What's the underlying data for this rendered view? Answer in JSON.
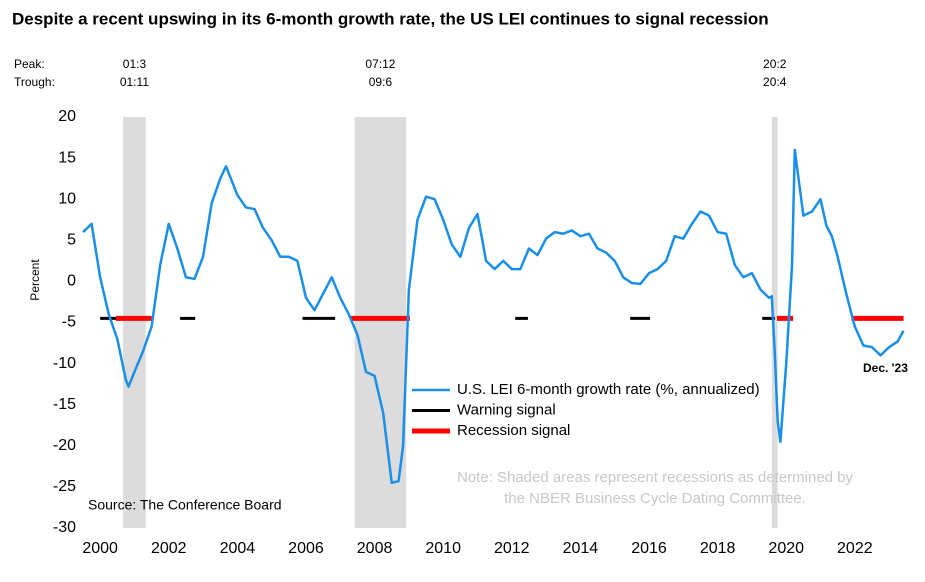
{
  "chart_data": {
    "type": "line",
    "title": "Despite a recent upswing in its 6-month growth rate, the US LEI continues to signal recession",
    "y_label": "Percent",
    "source": "Source: The Conference Board",
    "note": [
      "Note: Shaded areas represent recessions as determined by",
      "the NBER Business Cycle Dating Committee."
    ],
    "peak_label": "Peak:",
    "trough_label": "Trough:",
    "end_annotation": "Dec. '23",
    "xlim": [
      2000,
      2024.05
    ],
    "xticks": [
      {
        "value": 2000.5,
        "label": "2000"
      },
      {
        "value": 2002.5,
        "label": "2002"
      },
      {
        "value": 2004.5,
        "label": "2004"
      },
      {
        "value": 2006.5,
        "label": "2006"
      },
      {
        "value": 2008.5,
        "label": "2008"
      },
      {
        "value": 2010.5,
        "label": "2010"
      },
      {
        "value": 2012.5,
        "label": "2012"
      },
      {
        "value": 2014.5,
        "label": "2014"
      },
      {
        "value": 2016.5,
        "label": "2016"
      },
      {
        "value": 2018.5,
        "label": "2018"
      },
      {
        "value": 2020.5,
        "label": "2020"
      },
      {
        "value": 2022.5,
        "label": "2022"
      }
    ],
    "ylim": [
      -30,
      20
    ],
    "yticks": [
      -30,
      -25,
      -20,
      -15,
      -10,
      -5,
      0,
      5,
      10,
      15,
      20
    ],
    "recessions": [
      {
        "peak": "01:3",
        "trough": "01:11",
        "start": 2001.17,
        "end": 2001.83
      },
      {
        "peak": "07:12",
        "trough": "09:6",
        "start": 2007.92,
        "end": 2009.42
      },
      {
        "peak": "20:2",
        "trough": "20:4",
        "start": 2020.08,
        "end": 2020.25
      }
    ],
    "x": [
      2000,
      2000.25,
      2000.5,
      2000.75,
      2001,
      2001.25,
      2001.33,
      2001.5,
      2001.75,
      2002,
      2002.25,
      2002.5,
      2002.75,
      2003,
      2003.25,
      2003.5,
      2003.75,
      2004,
      2004.17,
      2004.5,
      2004.75,
      2005,
      2005.25,
      2005.5,
      2005.75,
      2006,
      2006.25,
      2006.5,
      2006.75,
      2007,
      2007.25,
      2007.5,
      2007.75,
      2008,
      2008.25,
      2008.5,
      2008.75,
      2009,
      2009.2,
      2009.33,
      2009.5,
      2009.75,
      2010,
      2010.25,
      2010.5,
      2010.75,
      2011,
      2011.25,
      2011.5,
      2011.75,
      2012,
      2012.25,
      2012.5,
      2012.75,
      2013,
      2013.25,
      2013.5,
      2013.75,
      2014,
      2014.25,
      2014.5,
      2014.75,
      2015,
      2015.25,
      2015.5,
      2015.75,
      2016,
      2016.25,
      2016.5,
      2016.75,
      2017,
      2017.25,
      2017.5,
      2017.75,
      2018,
      2018.25,
      2018.5,
      2018.75,
      2019,
      2019.25,
      2019.5,
      2019.75,
      2020,
      2020.08,
      2020.17,
      2020.25,
      2020.33,
      2020.5,
      2020.67,
      2020.75,
      2021,
      2021.25,
      2021.5,
      2021.67,
      2021.83,
      2022,
      2022.25,
      2022.5,
      2022.75,
      2023,
      2023.25,
      2023.5,
      2023.75,
      2023.92
    ],
    "series": [
      {
        "name": "U.S. LEI 6-month growth rate (%, annualized)",
        "color": "#1a8fe8",
        "values": [
          6,
          7,
          0.5,
          -4,
          -7,
          -12,
          -12.8,
          -11,
          -8.5,
          -5.5,
          2,
          7,
          4,
          0.5,
          0.3,
          3,
          9.5,
          12.5,
          14,
          10.5,
          9,
          8.8,
          6.5,
          5,
          3,
          3,
          2.5,
          -2,
          -3.5,
          -1.5,
          0.5,
          -2,
          -4,
          -6.5,
          -11,
          -11.5,
          -16,
          -24.5,
          -24.3,
          -20,
          -1,
          7.5,
          10.3,
          10,
          7.5,
          4.5,
          3,
          6.5,
          8.2,
          2.5,
          1.5,
          2.5,
          1.5,
          1.5,
          4,
          3.2,
          5.2,
          6,
          5.8,
          6.2,
          5.5,
          5.8,
          4,
          3.5,
          2.5,
          0.5,
          -0.2,
          -0.3,
          1,
          1.5,
          2.5,
          5.5,
          5.2,
          7,
          8.5,
          8,
          6,
          5.8,
          2,
          0.5,
          1,
          -1,
          -2,
          -1.8,
          -9,
          -17,
          -19.5,
          -10,
          2,
          16,
          8,
          8.5,
          10,
          6.8,
          5.5,
          3,
          -1.5,
          -5.5,
          -7.8,
          -8,
          -9,
          -8,
          -7.3,
          -6
        ]
      }
    ],
    "signal_level": -4.5,
    "warning_signal": {
      "name": "Warning signal",
      "color": "#000000",
      "periods": [
        [
          2000.5,
          2001.0
        ],
        [
          2002.83,
          2003.27
        ],
        [
          2006.4,
          2007.35
        ],
        [
          2012.6,
          2012.97
        ],
        [
          2015.95,
          2016.53
        ],
        [
          2019.8,
          2020.17
        ]
      ]
    },
    "recession_signal": {
      "name": "Recession signal",
      "color": "#ff0000",
      "periods": [
        [
          2000.96,
          2002.0
        ],
        [
          2007.78,
          2009.53
        ],
        [
          2020.23,
          2020.7
        ],
        [
          2022.4,
          2023.92
        ]
      ]
    }
  }
}
